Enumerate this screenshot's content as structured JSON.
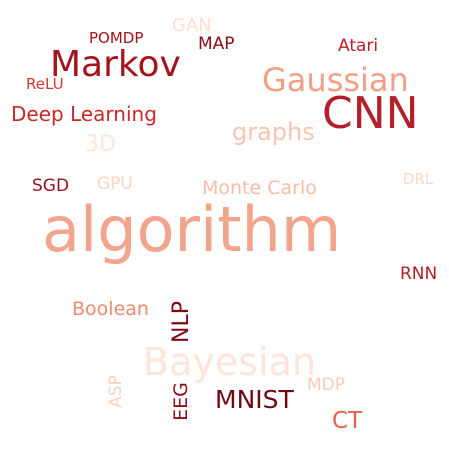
{
  "words": [
    {
      "key": "algorithm",
      "text": "algorithm",
      "color": "#f2a48c",
      "orientation": "horizontal"
    },
    {
      "key": "cnn",
      "text": "CNN",
      "color": "#b3202a",
      "orientation": "horizontal"
    },
    {
      "key": "markov",
      "text": "Markov",
      "color": "#a5141c",
      "orientation": "horizontal"
    },
    {
      "key": "gaussian",
      "text": "Gaussian",
      "color": "#f39f86",
      "orientation": "horizontal"
    },
    {
      "key": "bayesian",
      "text": "Bayesian",
      "color": "#fde5da",
      "orientation": "horizontal"
    },
    {
      "key": "graphs",
      "text": "graphs",
      "color": "#f8c4b0",
      "orientation": "horizontal"
    },
    {
      "key": "montecarlo",
      "text": "Monte Carlo",
      "color": "#f7bda8",
      "orientation": "horizontal"
    },
    {
      "key": "deep",
      "text": "Deep Learning",
      "color": "#c92a29",
      "orientation": "horizontal"
    },
    {
      "key": "mnist",
      "text": "MNIST",
      "color": "#6e0a12",
      "orientation": "horizontal"
    },
    {
      "key": "boolean",
      "text": "Boolean",
      "color": "#ef8a6e",
      "orientation": "horizontal"
    },
    {
      "key": "atari",
      "text": "Atari",
      "color": "#b8222b",
      "orientation": "horizontal"
    },
    {
      "key": "map",
      "text": "MAP",
      "color": "#8a0c15",
      "orientation": "horizontal"
    },
    {
      "key": "pomdp",
      "text": "POMDP",
      "color": "#a3141c",
      "orientation": "horizontal"
    },
    {
      "key": "gan",
      "text": "GAN",
      "color": "#fde0d3",
      "orientation": "horizontal"
    },
    {
      "key": "relu",
      "text": "ReLU",
      "color": "#d03a33",
      "orientation": "horizontal"
    },
    {
      "key": "3d",
      "text": "3D",
      "color": "#fde6dc",
      "orientation": "horizontal"
    },
    {
      "key": "sgd",
      "text": "SGD",
      "color": "#9b111b",
      "orientation": "horizontal"
    },
    {
      "key": "gpu",
      "text": "GPU",
      "color": "#fbd3c3",
      "orientation": "horizontal"
    },
    {
      "key": "drl",
      "text": "DRL",
      "color": "#fcd9cb",
      "orientation": "horizontal"
    },
    {
      "key": "rnn",
      "text": "RNN",
      "color": "#b31e26",
      "orientation": "horizontal"
    },
    {
      "key": "ct",
      "text": "CT",
      "color": "#e8604a",
      "orientation": "horizontal"
    },
    {
      "key": "mdp",
      "text": "MDP",
      "color": "#f9ccb9",
      "orientation": "horizontal"
    },
    {
      "key": "nlp",
      "text": "NLP",
      "color": "#7a0b14",
      "orientation": "vertical"
    },
    {
      "key": "eeg",
      "text": "EEG",
      "color": "#8c0e16",
      "orientation": "vertical"
    },
    {
      "key": "asp",
      "text": "ASP",
      "color": "#fbd0bf",
      "orientation": "vertical"
    }
  ]
}
